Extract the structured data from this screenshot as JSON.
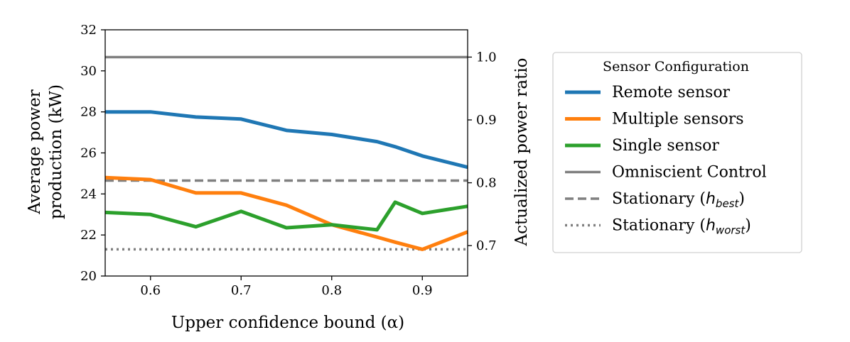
{
  "chart_data": {
    "type": "line",
    "x": [
      0.55,
      0.6,
      0.65,
      0.7,
      0.75,
      0.8,
      0.85,
      0.87,
      0.9,
      0.95
    ],
    "xlim": [
      0.55,
      0.95
    ],
    "ylim": [
      20,
      32
    ],
    "y2lim": [
      0.6516,
      1.0434
    ],
    "xticks": [
      0.6,
      0.7,
      0.8,
      0.9
    ],
    "xtick_labels": [
      "0.6",
      "0.7",
      "0.8",
      "0.9"
    ],
    "yticks": [
      20,
      22,
      24,
      26,
      28,
      30,
      32
    ],
    "ytick_labels": [
      "20",
      "22",
      "24",
      "26",
      "28",
      "30",
      "32"
    ],
    "y2ticks": [
      0.7,
      0.8,
      0.9,
      1.0
    ],
    "y2tick_labels": [
      "0.7",
      "0.8",
      "0.9",
      "1.0"
    ],
    "xlabel": "Upper confidence bound (α)",
    "ylabel_line1": "Average power",
    "ylabel_line2": "production (kW)",
    "y2label": "Actualized power ratio",
    "legend_title": "Sensor Configuration",
    "legend_position": "right",
    "series": [
      {
        "name": "Remote sensor",
        "color": "#1f77b4",
        "style": "solid",
        "values": [
          28.0,
          28.0,
          27.75,
          27.65,
          27.1,
          26.9,
          26.55,
          26.3,
          25.85,
          25.3
        ]
      },
      {
        "name": "Multiple sensors",
        "color": "#ff7f0e",
        "style": "solid",
        "values": [
          24.8,
          24.7,
          24.05,
          24.05,
          23.45,
          22.5,
          21.9,
          21.65,
          21.3,
          22.15
        ]
      },
      {
        "name": "Single sensor",
        "color": "#2ca02c",
        "style": "solid",
        "values": [
          23.1,
          23.0,
          22.4,
          23.15,
          22.35,
          22.5,
          22.25,
          23.6,
          23.05,
          23.4
        ]
      }
    ],
    "reference_lines": [
      {
        "name": "Omniscient Control",
        "value": 30.67,
        "color": "#808080",
        "style": "solid"
      },
      {
        "name": "Stationary (h_best)",
        "label_prefix": "Stationary (",
        "subscript": "best",
        "label_suffix": ")",
        "value": 24.65,
        "color": "#808080",
        "style": "dashed"
      },
      {
        "name": "Stationary (h_worst)",
        "label_prefix": "Stationary (",
        "subscript": "worst",
        "label_suffix": ")",
        "value": 21.3,
        "color": "#808080",
        "style": "dotted"
      }
    ]
  }
}
